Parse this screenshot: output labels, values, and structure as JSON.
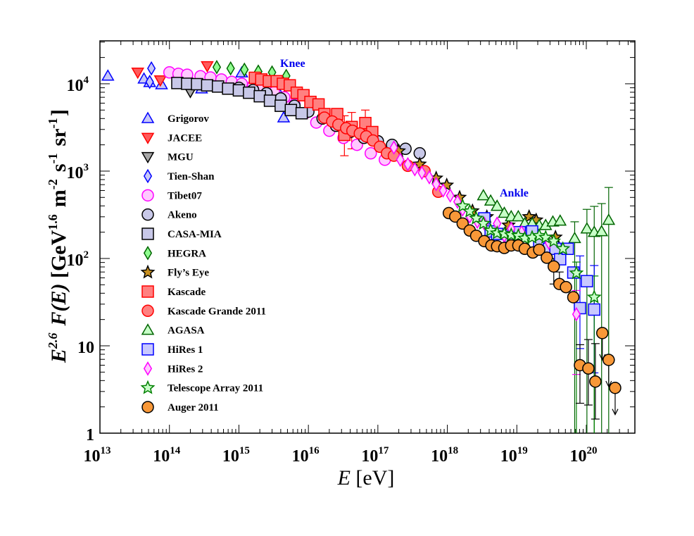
{
  "chart_data": {
    "type": "scatter",
    "title": "",
    "xlabel": {
      "parts": [
        {
          "t": "E",
          "italic": true
        },
        {
          "t": " [eV]"
        }
      ]
    },
    "ylabel": {
      "parts": [
        {
          "t": "E",
          "italic": true,
          "bold": true
        },
        {
          "t": "2.6",
          "sup": true,
          "italic": true
        },
        {
          "t": " F(E)",
          "italic": true,
          "bold": true
        },
        {
          "t": " [GeV",
          "bold": true
        },
        {
          "t": "1.6",
          "sup": true
        },
        {
          "t": " m",
          "bold": true
        },
        {
          "t": "-2",
          "sup": true
        },
        {
          "t": " s",
          "bold": true
        },
        {
          "t": "-1",
          "sup": true
        },
        {
          "t": " sr",
          "bold": true
        },
        {
          "t": "-1",
          "sup": true
        },
        {
          "t": "]",
          "bold": true
        }
      ]
    },
    "x_scale": "log",
    "y_scale": "log",
    "xlim": [
      10000000000000.0,
      5e+20
    ],
    "ylim": [
      1,
      31000.0
    ],
    "grid": false,
    "legend_position": "left",
    "x_ticks": [
      {
        "value": 10000000000000.0,
        "base": "10",
        "exp": "13"
      },
      {
        "value": 100000000000000.0,
        "base": "10",
        "exp": "14"
      },
      {
        "value": 1000000000000000.0,
        "base": "10",
        "exp": "15"
      },
      {
        "value": 1e+16,
        "base": "10",
        "exp": "16"
      },
      {
        "value": 1e+17,
        "base": "10",
        "exp": "17"
      },
      {
        "value": 1e+18,
        "base": "10",
        "exp": "18"
      },
      {
        "value": 1e+19,
        "base": "10",
        "exp": "19"
      },
      {
        "value": 1e+20,
        "base": "10",
        "exp": "20"
      }
    ],
    "y_ticks": [
      {
        "value": 1,
        "base": "1",
        "exp": ""
      },
      {
        "value": 10,
        "base": "10",
        "exp": ""
      },
      {
        "value": 100,
        "base": "10",
        "exp": "2"
      },
      {
        "value": 1000,
        "base": "10",
        "exp": "3"
      },
      {
        "value": 10000,
        "base": "10",
        "exp": "4"
      }
    ],
    "annotations": [
      {
        "text": "Knee",
        "x": 1.5e+16,
        "y": 21000.0
      },
      {
        "text": "Ankle",
        "x": 1.2e+19,
        "y": 430
      }
    ],
    "series": [
      {
        "name": "Grigorov",
        "marker": "triangle-up",
        "fill": "#c8c8f8",
        "stroke": "#0000ff",
        "x": [
          13000000000000.0,
          43000000000000.0,
          52000000000000.0,
          77000000000000.0,
          290000000000000.0,
          1100000000000000.0,
          3800000000000000.0,
          4400000000000000.0
        ],
        "y": [
          12300,
          11400,
          10400,
          9800,
          8800,
          13400,
          7700,
          4100
        ]
      },
      {
        "name": "JACEE",
        "marker": "triangle-down",
        "fill": "#ff5a5a",
        "stroke": "#ff0000",
        "x": [
          35000000000000.0,
          74000000000000.0,
          350000000000000.0
        ],
        "y": [
          13500,
          11000,
          16000
        ]
      },
      {
        "name": "MGU",
        "marker": "triangle-down",
        "fill": "#a8a8a8",
        "stroke": "#000000",
        "x": [
          200000000000000.0,
          1000000000000000.0,
          3000000000000000.0
        ],
        "y": [
          8100,
          9500,
          10500
        ]
      },
      {
        "name": "Tien-Shan",
        "marker": "diamond",
        "fill": "#c8c8f8",
        "stroke": "#0000ff",
        "x": [
          55000000000000.0,
          52000000000000.0
        ],
        "y": [
          15000,
          10500
        ]
      },
      {
        "name": "Tibet07",
        "marker": "circle",
        "fill": "#ffc8ff",
        "stroke": "#ff00ff",
        "x": [
          100000000000000.0,
          135000000000000.0,
          180000000000000.0,
          280000000000000.0,
          390000000000000.0,
          560000000000000.0,
          790000000000000.0,
          1100000000000000.0,
          1600000000000000.0,
          2200000000000000.0,
          3200000000000000.0,
          4500000000000000.0,
          6300000000000000.0,
          8900000000000000.0,
          1.3e+16,
          2e+16,
          3.2e+16,
          5e+16,
          7.9e+16,
          1.26e+17
        ],
        "y": [
          13500,
          13000,
          12700,
          12200,
          11800,
          11200,
          10500,
          10000,
          9500,
          9000,
          8000,
          7000,
          5800,
          4600,
          3600,
          2900,
          2400,
          2000,
          1600,
          1350
        ]
      },
      {
        "name": "Akeno",
        "marker": "circle",
        "fill": "#c8c8e8",
        "stroke": "#000000",
        "x": [
          1000000000000000.0,
          1600000000000000.0,
          2500000000000000.0,
          4000000000000000.0,
          6300000000000000.0,
          1e+16,
          1.6e+16,
          2.5e+16,
          4e+16,
          6.3e+16,
          1e+17,
          1.6e+17,
          2.5e+17,
          4e+17
        ],
        "y": [
          9000,
          8500,
          7800,
          6800,
          5600,
          4800,
          4000,
          3300,
          2800,
          2400,
          2200,
          2000,
          1800,
          1600
        ]
      },
      {
        "name": "CASA-MIA",
        "marker": "square",
        "fill": "#c8c8e8",
        "stroke": "#000000",
        "x": [
          130000000000000.0,
          180000000000000.0,
          250000000000000.0,
          350000000000000.0,
          500000000000000.0,
          700000000000000.0,
          1000000000000000.0,
          1400000000000000.0,
          2000000000000000.0,
          2800000000000000.0,
          4000000000000000.0,
          5600000000000000.0,
          8000000000000000.0
        ],
        "y": [
          10200,
          10000,
          9900,
          9600,
          9300,
          8800,
          8400,
          7900,
          7200,
          6400,
          5600,
          5000,
          4600
        ]
      },
      {
        "name": "HEGRA",
        "marker": "diamond",
        "fill": "#90ff90",
        "stroke": "#006400",
        "x": [
          480000000000000.0,
          760000000000000.0,
          1200000000000000.0,
          1900000000000000.0,
          3000000000000000.0,
          4800000000000000.0
        ],
        "y": [
          15500,
          15000,
          14500,
          13800,
          13500,
          12300
        ]
      },
      {
        "name": "Fly’s Eye",
        "marker": "star",
        "fill": "#c89020",
        "stroke": "#000000",
        "x": [
          2e+17,
          4e+17,
          6.9e+17,
          9.8e+17,
          1.5e+18,
          2.3e+18,
          3.7e+18,
          7.6e+18,
          1.5e+19,
          1.9e+19,
          3.6e+19
        ],
        "y": [
          1700,
          1200,
          830,
          690,
          500,
          350,
          300,
          240,
          300,
          275,
          175
        ]
      },
      {
        "name": "Kascade",
        "marker": "square",
        "fill": "#ff8080",
        "stroke": "#ff0000",
        "x": [
          1700000000000000.0,
          2100000000000000.0,
          2700000000000000.0,
          3500000000000000.0,
          4300000000000000.0,
          5400000000000000.0,
          6800000000000000.0,
          8500000000000000.0,
          1.07e+16,
          1.4e+16,
          1.7e+16,
          2.6e+16,
          3.3e+16,
          4.2e+16,
          6.6e+16,
          8.3e+16
        ],
        "y": [
          11700,
          11200,
          10700,
          10700,
          10000,
          9600,
          7900,
          7400,
          6200,
          5800,
          4500,
          4500,
          2600,
          3200,
          3550,
          2800
        ],
        "errors": [
          [
            12,
            1500,
            4300
          ],
          [
            13,
            1800,
            4700
          ],
          [
            14,
            2200,
            5000
          ]
        ]
      },
      {
        "name": "Kascade Grande 2011",
        "marker": "circle",
        "fill": "#ff8080",
        "stroke": "#ff0000",
        "x": [
          1.7e+16,
          2.2e+16,
          2.7e+16,
          3.5e+16,
          4.3e+16,
          5.5e+16,
          6.8e+16,
          8.5e+16,
          1.07e+17,
          1.35e+17,
          1.7e+17,
          2.7e+17,
          4.7e+17,
          7.4e+17
        ],
        "y": [
          4100,
          3700,
          3400,
          3100,
          2900,
          2700,
          2500,
          2240,
          1900,
          1600,
          1500,
          1150,
          1000,
          580
        ]
      },
      {
        "name": "AGASA",
        "marker": "triangle-up",
        "fill": "#c8ffc8",
        "stroke": "#006400",
        "x": [
          3.3e+18,
          4.2e+18,
          5.2e+18,
          6.6e+18,
          8.3e+18,
          1.05e+19,
          1.3e+19,
          1.66e+19,
          2.1e+19,
          2.6e+19,
          3.3e+19,
          4.2e+19,
          6.8e+19,
          1.02e+20,
          1.3e+20,
          1.66e+20,
          2.1e+20
        ],
        "y": [
          525,
          457,
          398,
          331,
          302,
          302,
          251,
          251,
          240,
          240,
          263,
          269,
          170,
          219,
          200,
          204,
          275
        ],
        "errors": [
          [
            12,
            0.5,
            263
          ],
          [
            13,
            0.5,
            365
          ],
          [
            14,
            0.5,
            395
          ],
          [
            15,
            0.5,
            425
          ],
          [
            16,
            0.5,
            650
          ]
        ]
      },
      {
        "name": "HiRes 1",
        "marker": "square",
        "fill": "#c8c8ff",
        "stroke": "#0000ff",
        "x": [
          3.4e+18,
          4.2e+18,
          5.2e+18,
          7.9e+18,
          1.1e+19,
          1.66e+19,
          2.1e+19,
          2.9e+19,
          3.6e+19,
          4.2e+19,
          5.4e+19,
          6.5e+19,
          8.1e+19,
          1.02e+20,
          1.3e+20
        ],
        "y": [
          288,
          204,
          191,
          178,
          200,
          204,
          151,
          129,
          129,
          98,
          129,
          69,
          27,
          55,
          26
        ],
        "errors": [
          [
            12,
            9.3,
            107
          ],
          [
            14,
            4.9,
            83
          ]
        ]
      },
      {
        "name": "HiRes 2",
        "marker": "diamond",
        "fill": "#ffc8ff",
        "stroke": "#ff00ff",
        "x": [
          1.7e+17,
          2.1e+17,
          2.7e+17,
          3.4e+17,
          4.3e+17,
          5.5e+17,
          6.9e+17,
          8.7e+17,
          1.1e+18,
          1.4e+18,
          1.66e+18,
          2.1e+18,
          2.7e+18,
          3.4e+18,
          5.2e+18,
          6.6e+18,
          8.3e+18,
          1.17e+19,
          2.9e+19,
          7.2e+19
        ],
        "y": [
          1860,
          1350,
          1200,
          1050,
          955,
          850,
          710,
          600,
          525,
          447,
          363,
          302,
          263,
          251,
          251,
          182,
          219,
          200,
          151,
          23
        ],
        "errors": [
          [
            19,
            4.7,
            43
          ]
        ]
      },
      {
        "name": "Telescope Array 2011",
        "marker": "star",
        "fill": "#c8ffc8",
        "stroke": "#008000",
        "x": [
          1.66e+18,
          2.1e+18,
          2.6e+18,
          3.3e+18,
          4.2e+18,
          5.2e+18,
          6.6e+18,
          8.3e+18,
          1.05e+19,
          1.3e+19,
          1.66e+19,
          2.1e+19,
          2.6e+19,
          3.4e+19,
          4.6e+19,
          7.2e+19,
          1.3e+20
        ],
        "y": [
          398,
          347,
          288,
          251,
          209,
          195,
          191,
          186,
          182,
          170,
          174,
          182,
          174,
          158,
          129,
          68,
          36
        ],
        "errors": [
          [
            15,
            0.5,
            91
          ],
          [
            16,
            0.5,
            63
          ]
        ]
      },
      {
        "name": "Auger 2011",
        "marker": "circle",
        "fill": "#f89838",
        "stroke": "#000000",
        "x": [
          1.05e+18,
          1.3e+18,
          1.66e+18,
          2.1e+18,
          2.6e+18,
          3.4e+18,
          4.3e+18,
          5.2e+18,
          6.6e+18,
          8.3e+18,
          1.05e+19,
          1.3e+19,
          1.7e+19,
          2.1e+19,
          2.7e+19,
          3.4e+19,
          4.1e+19,
          5.1e+19,
          6.5e+19,
          8.1e+19,
          1.07e+20,
          1.35e+20,
          1.7e+20,
          2.1e+20,
          2.6e+20
        ],
        "y": [
          331,
          302,
          251,
          209,
          182,
          158,
          141,
          138,
          132,
          141,
          141,
          129,
          117,
          126,
          102,
          81,
          51,
          47,
          36,
          6.0,
          5.5,
          3.9,
          14,
          6.9,
          3.3
        ],
        "errors": [
          [
            15,
            51,
            100
          ],
          [
            16,
            49,
            70
          ],
          [
            19,
            2.2,
            10.3
          ],
          [
            20,
            2.1,
            11.8
          ],
          [
            21,
            1.45,
            10.6
          ]
        ],
        "upper_limits": [
          22,
          23,
          24
        ]
      }
    ]
  }
}
